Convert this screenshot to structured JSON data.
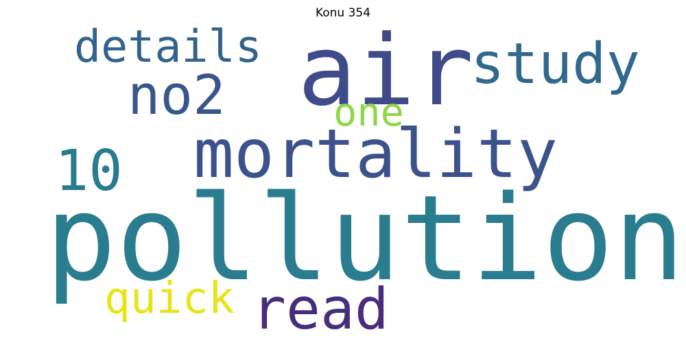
{
  "title": "Konu 354",
  "words": [
    {
      "id": "pollution",
      "text": "pollution",
      "color": "#2a7d8e"
    },
    {
      "id": "air",
      "text": "air",
      "color": "#3e4a89"
    },
    {
      "id": "mortality",
      "text": "mortality",
      "color": "#3b528b"
    },
    {
      "id": "study",
      "text": "study",
      "color": "#31688e"
    },
    {
      "id": "no2",
      "text": "no2",
      "color": "#39568c"
    },
    {
      "id": "details",
      "text": "details",
      "color": "#33638d"
    },
    {
      "id": "10",
      "text": "10",
      "color": "#297b8e"
    },
    {
      "id": "read",
      "text": "read",
      "color": "#472d7b"
    },
    {
      "id": "quick",
      "text": "quick",
      "color": "#e8e419"
    },
    {
      "id": "one",
      "text": "one",
      "color": "#8fd744"
    }
  ]
}
